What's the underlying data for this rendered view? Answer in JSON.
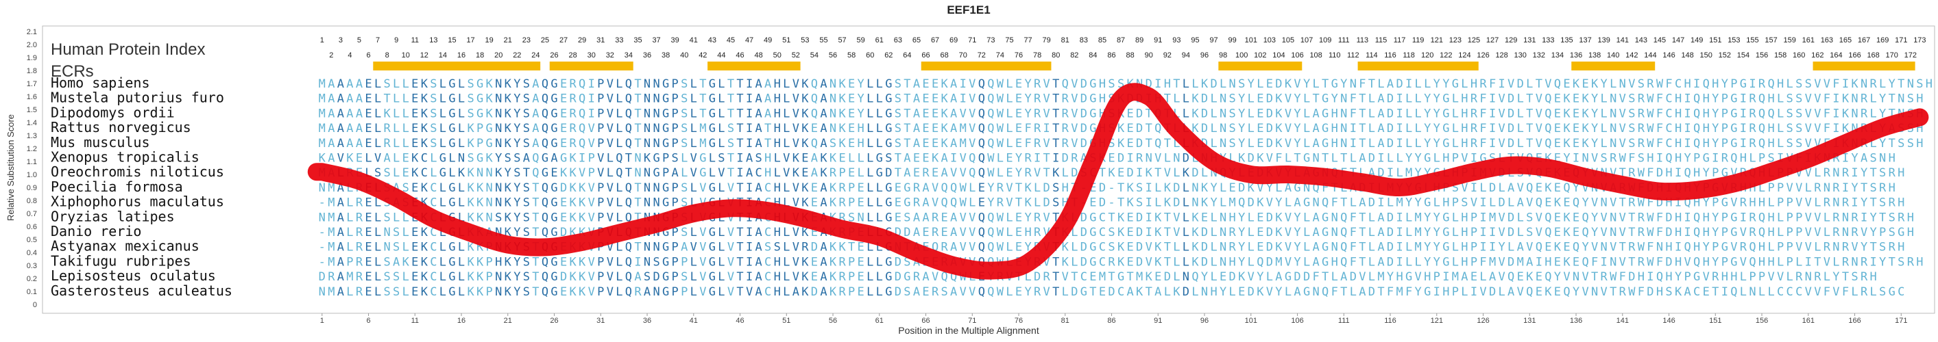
{
  "chart_data": {
    "type": "alignment",
    "title": "EEF1E1",
    "xlabel": "Position in the Multiple Alignment",
    "ylabel": "Relative Substitution Score",
    "ylim": [
      0,
      2.1
    ],
    "y_ticks": [
      "0",
      "0.1",
      "0.2",
      "0.3",
      "0.4",
      "0.5",
      "0.6",
      "0.7",
      "0.8",
      "0.9",
      "1.0",
      "1.1",
      "1.2",
      "1.3",
      "1.4",
      "1.5",
      "1.6",
      "1.7",
      "1.8",
      "1.9",
      "2.0",
      "2.1"
    ],
    "x_ticks": [
      "1",
      "6",
      "11",
      "16",
      "21",
      "26",
      "31",
      "36",
      "41",
      "46",
      "51",
      "56",
      "61",
      "66",
      "71",
      "76",
      "81",
      "86",
      "91",
      "96",
      "101",
      "106",
      "111",
      "116",
      "121",
      "126",
      "131",
      "136",
      "141",
      "146",
      "151",
      "156",
      "161",
      "166",
      "171"
    ],
    "header_label": "Human Protein Index",
    "ecr_label": "ECRs",
    "ecr_color": "#f5b800",
    "curve_color": "#e8000a",
    "ecr_regions": [
      [
        7,
        24
      ],
      [
        26,
        34
      ],
      [
        43,
        52
      ],
      [
        66,
        79
      ],
      [
        98,
        106
      ],
      [
        113,
        125
      ],
      [
        136,
        144
      ],
      [
        162,
        172
      ]
    ],
    "species": [
      "Homo sapiens",
      "Mustela putorius furo",
      "Dipodomys ordii",
      "Rattus norvegicus",
      "Mus musculus",
      "Xenopus tropicalis",
      "Oreochromis niloticus",
      "Poecilia formosa",
      "Xiphophorus maculatus",
      "Oryzias latipes",
      "Danio rerio",
      "Astyanax mexicanus",
      "Takifugu rubripes",
      "Lepisosteus oculatus",
      "Gasterosteus aculeatus"
    ],
    "sequences": [
      "MAAAAELSLLEKSLGLSGKNKYSAQGERQIPVLQTNNGPSLTGLTTIAAHLVKQANKEYLLGSTAEEKAIVQQWLEYRVTQVDGHSSKNDIHTLLKDLNSYLEDKVYLTGYNFTLADILLYYGLHRFIVDLTVQEKEKYLNVSRWFCHIQHYPGIRQHLSSVVFIKNRLYTNSH",
      "MAAAAELTLLEKSLGLSGKNKYSAQGERQIPVLQTNNGPSLTGLTTIAAHLVKQANKEYLLGSTAEEKAIVQQWLEYRVTRVDGHSKDDIHTLLKDLNSYLEDKVYLTGYNFTLADILLYYGLHRFIVDLTVQEKEKYLNVSRWFCHIQHYPGIRQHLSSVVFIKNRLYTNSH",
      "MAAAAELKLLEKSLGLSGKNKYSAQGERQIPVLQTNNGPSLTGLTTIAAHLVKQANKEYLLGSTAEEKAVVQQWLEYRVTRVDGHSKEDTQTLLKDLNSYLEDKVYLAGHNFTLADILLYYGLHRFIVDLTVQEKEKYLNVSRWFCHIQHYPGIRQQLSSVVFIKNRLYTNSH",
      "MAAAAELRLLEKSLGLKPGNKYSAQGERQVPVLQTNNGPSLMGLSTIATHLVKEANKEHLLGSTAEEKAMVQQWLEFRITRVDGHSKEDTQTLLKDLNSYLEDKVYLAGHNITLADILLYYGLHRFIVDLTVQEKEKYLNVSRWFCHIQHYPGIRQHLSSVVFIKNRLYASSH",
      "MAAAAELRLLEKSLGLKPGNKYSAQGERQVPVLQTNNGPSLMGLSTIATHLVKQASKEHLLGSTAEEKAMVQQWLEFRVTRVDGHSKEDTQTLLKDLNSYLEDKVYLAGHNITLADILLYYGLHRFIVDLTVQEKEKYLNVSRWFCHIQHYPGIRQHLSSVVFIKNRLYTSSH",
      "KAVKELVALEKCLGLNSGKYSSAQGAGKIPVLQTNKGPSLVGLSTIASHLVKEAKKELLLGSTAEEKAIVQQWLEYRITIDRASKEDIRNVLNDLNHYLKDKVFLTGNTLTLADILLYYGLHPVIGSLTVQEKEYINVSRWFSHIQHYPGIRQHLPSIVFIKNRIYASNH",
      "MALRELSSLEKCLGLKKNNKYSTQGEKKVPVLQTNNGPALVGLVTIACHLVKEAKRPELLGDTAEREAVVQQWLEYRVTKLDSCTKEDIKTVLKDLNQYLEDKVYLAGNQFTLADILMYYGLHPIMVDLSVQEKEQYVNVTRWFDHIQHYPGVRQHLPPVVLRNRIYTSRH",
      "NMALRELSASEKCLGLKKNNKYSTQGDKKVPVLQTNNGPSLVGLVTIACHLVKEAKRPELLGEGRAVQQWLEYRVTKLDSHT-ED-TKSILKDLNKYLEDKVYLAGNQFTLADILMYYGLHPSVILDLAVQEKEQYVNVARWFDHIQHYPGVRHHLPPVVLRNRIYTSRH",
      "-MALRELSASEKCLGLKKNNKYSTQGEKKVPVLQTNNGPSLVGLVTIACHLVKEAKRPELLGEGRAVQQWLEYRVTKLDSHT-ED-TKSILKDLNKYLMQDKVYLAGNQFTLADILMYYGLHPSVILDLAVQEKEQYVNVTRWFDHIQHYPGVRHHLPPVVLRNRIYTSRH",
      "NMALRELSLLEKCLGLKKNSKYSTQGEKKVPVLQTNNGPSLVGLVTIACHLVKEAKRSNLLGESAAREAVVQQWLEYRVTKLDGCTKEDIKTVLKELNHYLEDKVYLAGNQFTLADILMYYGLHPIMVDLSVQEKEQYVNVTRWFDHIQHYPGIRQHLPPVVLRNRIYTSRH",
      "-MALRELNSLEKCLGLKKANKYSTQGDKKVPVLQTNNGPSLVGLVTIACHLVKEAKRPELLGDDAEREAVVQQWLEHRVTKLDGCSKEDIKTVLKDLNRYLEDKVYLAGNQFTLADILMYYGLHPIIVDLSVQEKEQYVNVTRWFDHIQHYPGVRQHLPPVVLRNRVYPSGH",
      "-MALRELNSLEKCLGLKKPNKYSTQGEKKVPVLQTNNGPAVVGLVTIASSLVRDAKKTELLGNTAEQRAVVQQWLEYRVTKLDGCSKEDVKTLLKDLNRYLEDKVYLAGNQFTLADILMYYGLHPIIYLAVQEKEQYVNVTRWFNHIQHYPGVRQHLPPVVLRNRVYTSRH",
      "-MAPRELSAKEKCLGLKKPHKYSTQGEKKVPVLQINSGPPLVGLVTIACHLVKEAKRPELLGDSAEERAVVQQWLEYRVTKLDGCRKEDVKTLLKDLNHYLQDMVYLAGHQFTLADILLYYGLHPFMVDMAIHEKEQFINVTRWFDHVQHYPGVQHHLPLITVLRNRIYTSRH",
      "DRAMRELSSLEKCLGLKKPNKYSTQGDKKVPVLQASDGPSLVGLVTIACHLVKEAKRPELLGDGRAVQQWLEYRVTLDRTVTCEMTGTMKEDLNQYLEDKVYLAGDDFTLADVLMYHGVHPIMAELAVQEKEQYVNVTRWFDHIQHYPGVRHHLPPVVLRNRLYTSRH",
      "NMALRELSSLEKCLGLKKPNKYSTQGEKKVPVLQRANGPPLVGLVTVACHLAKDAKRPELLGDSAERSAVVQQWLEYRVTLDGTEDCAKTALKDLNHYLEDKVYLAGNQFTLADTFMFYGIHPLIVDLAVQEKEQYVNVTRWFDHSKACETIQLNLLCCCVVFVFLRLSGC"
    ],
    "index_top": [
      "1",
      "3",
      "5",
      "7",
      "9",
      "11",
      "13",
      "15",
      "17",
      "19",
      "21",
      "23",
      "25",
      "27",
      "29",
      "31",
      "33",
      "35",
      "37",
      "39",
      "41",
      "43",
      "45",
      "47",
      "49",
      "51",
      "53",
      "55",
      "57",
      "59",
      "61",
      "63",
      "65",
      "67",
      "69",
      "71",
      "73",
      "75",
      "77",
      "79",
      "81",
      "83",
      "85",
      "87",
      "89",
      "91",
      "93",
      "95",
      "97",
      "99",
      "101",
      "103",
      "105",
      "107",
      "109",
      "111",
      "113",
      "115",
      "117",
      "119",
      "121",
      "123",
      "125",
      "127",
      "129",
      "131",
      "133",
      "135",
      "137",
      "139",
      "141",
      "143",
      "145",
      "147",
      "149",
      "151",
      "153",
      "155",
      "157",
      "159",
      "161",
      "163",
      "165",
      "167",
      "169",
      "171",
      "173"
    ],
    "index_bottom": [
      "2",
      "4",
      "6",
      "8",
      "10",
      "12",
      "14",
      "16",
      "18",
      "20",
      "22",
      "24",
      "26",
      "28",
      "30",
      "32",
      "34",
      "36",
      "38",
      "40",
      "42",
      "44",
      "46",
      "48",
      "50",
      "52",
      "54",
      "56",
      "58",
      "60",
      "62",
      "64",
      "66",
      "68",
      "70",
      "72",
      "74",
      "76",
      "78",
      "80",
      "82",
      "84",
      "86",
      "88",
      "90",
      "92",
      "94",
      "96",
      "98",
      "100",
      "102",
      "104",
      "106",
      "108",
      "110",
      "112",
      "114",
      "116",
      "118",
      "120",
      "122",
      "124",
      "126",
      "128",
      "130",
      "132",
      "134",
      "136",
      "138",
      "140",
      "142",
      "144",
      "146",
      "148",
      "150",
      "152",
      "154",
      "156",
      "158",
      "160",
      "162",
      "164",
      "166",
      "168",
      "170",
      "172"
    ],
    "score_curve": {
      "x": [
        1,
        5,
        9,
        13,
        17,
        21,
        25,
        29,
        33,
        37,
        41,
        45,
        49,
        53,
        57,
        61,
        65,
        69,
        73,
        77,
        81,
        84,
        87,
        90,
        93,
        97,
        101,
        105,
        109,
        113,
        117,
        121,
        125,
        129,
        133,
        137,
        141,
        145,
        149,
        153,
        157,
        161,
        165,
        169,
        173
      ],
      "y": [
        1.02,
        0.95,
        0.82,
        0.66,
        0.55,
        0.46,
        0.44,
        0.48,
        0.55,
        0.62,
        0.7,
        0.74,
        0.72,
        0.66,
        0.58,
        0.52,
        0.4,
        0.3,
        0.26,
        0.32,
        0.62,
        1.1,
        1.58,
        1.6,
        1.35,
        1.1,
        1.0,
        1.0,
        0.98,
        0.94,
        0.9,
        0.95,
        1.02,
        1.07,
        1.05,
        0.98,
        0.92,
        0.87,
        0.88,
        0.93,
        1.02,
        1.12,
        1.24,
        1.36,
        1.44
      ]
    }
  }
}
